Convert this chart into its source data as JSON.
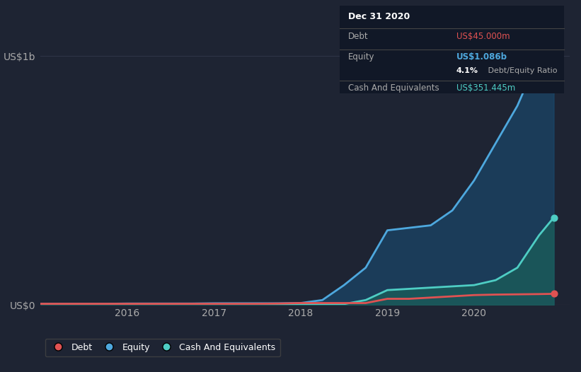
{
  "background_color": "#1e2433",
  "plot_bg_color": "#1e2433",
  "grid_color": "#2e3447",
  "tooltip_bg": "#111827",
  "y_labels": [
    "US$0",
    "US$1b"
  ],
  "x_ticks": [
    2016,
    2017,
    2018,
    2019,
    2020
  ],
  "ylim": [
    0,
    1150000000.0
  ],
  "debt_color": "#e05252",
  "equity_color": "#4ea8de",
  "cash_color": "#4ecdc4",
  "equity_fill_color": "#1a4a6e",
  "cash_fill_color": "#1a5e5a",
  "debt_data": {
    "x": [
      2015.0,
      2015.25,
      2015.5,
      2015.75,
      2016.0,
      2016.25,
      2016.5,
      2016.75,
      2017.0,
      2017.25,
      2017.5,
      2017.75,
      2018.0,
      2018.25,
      2018.5,
      2018.75,
      2019.0,
      2019.25,
      2019.5,
      2019.75,
      2020.0,
      2020.25,
      2020.5,
      2020.75,
      2020.92
    ],
    "y": [
      5000000,
      5000000,
      5000000,
      5000000,
      5000000,
      5000000,
      5000000,
      5000000,
      5000000,
      5000000,
      5000000,
      6000000,
      8000000,
      8000000,
      8000000,
      8000000,
      25000000,
      25000000,
      30000000,
      35000000,
      40000000,
      42000000,
      43000000,
      44000000,
      45000000
    ]
  },
  "equity_data": {
    "x": [
      2015.0,
      2015.25,
      2015.5,
      2015.75,
      2016.0,
      2016.25,
      2016.5,
      2016.75,
      2017.0,
      2017.25,
      2017.5,
      2017.75,
      2018.0,
      2018.25,
      2018.5,
      2018.75,
      2019.0,
      2019.25,
      2019.5,
      2019.75,
      2020.0,
      2020.25,
      2020.5,
      2020.75,
      2020.92
    ],
    "y": [
      5000000,
      5000000,
      5000000,
      5000000,
      6000000,
      6000000,
      6000000,
      6000000,
      7000000,
      7000000,
      7000000,
      7000000,
      8000000,
      20000000,
      80000000,
      150000000,
      300000000,
      310000000,
      320000000,
      380000000,
      500000000,
      650000000,
      800000000,
      1000000000,
      1086000000
    ]
  },
  "cash_data": {
    "x": [
      2015.0,
      2015.25,
      2015.5,
      2015.75,
      2016.0,
      2016.25,
      2016.5,
      2016.75,
      2017.0,
      2017.25,
      2017.5,
      2017.75,
      2018.0,
      2018.25,
      2018.5,
      2018.75,
      2019.0,
      2019.25,
      2019.5,
      2019.75,
      2020.0,
      2020.25,
      2020.5,
      2020.75,
      2020.92
    ],
    "y": [
      3000000,
      3000000,
      3000000,
      3000000,
      3000000,
      3000000,
      3000000,
      3000000,
      3000000,
      3000000,
      3000000,
      3000000,
      4000000,
      4000000,
      4000000,
      20000000,
      60000000,
      65000000,
      70000000,
      75000000,
      80000000,
      100000000,
      150000000,
      280000000,
      351445000
    ]
  },
  "legend_items": [
    {
      "label": "Debt",
      "color": "#e05252"
    },
    {
      "label": "Equity",
      "color": "#4ea8de"
    },
    {
      "label": "Cash And Equivalents",
      "color": "#4ecdc4"
    }
  ],
  "tooltip": {
    "title": "Dec 31 2020",
    "debt_label": "Debt",
    "debt_value": "US$45.000m",
    "equity_label": "Equity",
    "equity_value": "US$1.086b",
    "ratio_bold": "4.1%",
    "ratio_rest": " Debt/Equity Ratio",
    "cash_label": "Cash And Equivalents",
    "cash_value": "US$351.445m",
    "debt_color": "#e05252",
    "equity_color": "#4ea8de",
    "cash_color": "#4ecdc4"
  }
}
